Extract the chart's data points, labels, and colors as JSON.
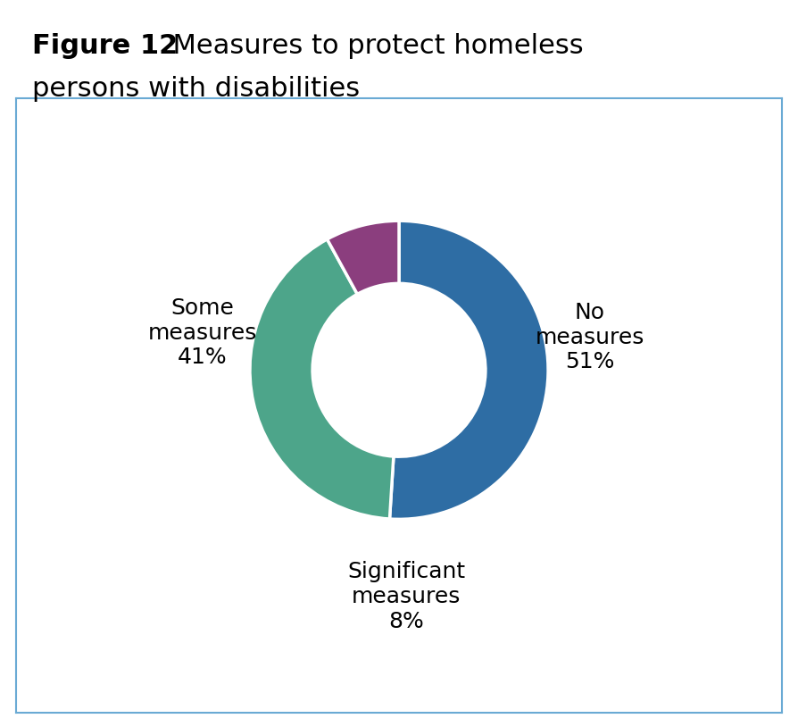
{
  "title_bold": "Figure 12",
  "title_rest_line1": "  Measures to protect homeless",
  "title_line2": "persons with disabilities",
  "slices": [
    51,
    41,
    8
  ],
  "colors": [
    "#2E6DA4",
    "#4DA58A",
    "#8B3E7E"
  ],
  "startangle": 90,
  "label_fontsize": 18,
  "title_bold_fontsize": 22,
  "title_reg_fontsize": 22,
  "background_color": "#ffffff",
  "box_color": "#6AAAD4",
  "donut_width": 0.42,
  "label_no": "No\nmeasures\n51%",
  "label_some": "Some\nmeasures\n41%",
  "label_sig": "Significant\nmeasures\n8%"
}
